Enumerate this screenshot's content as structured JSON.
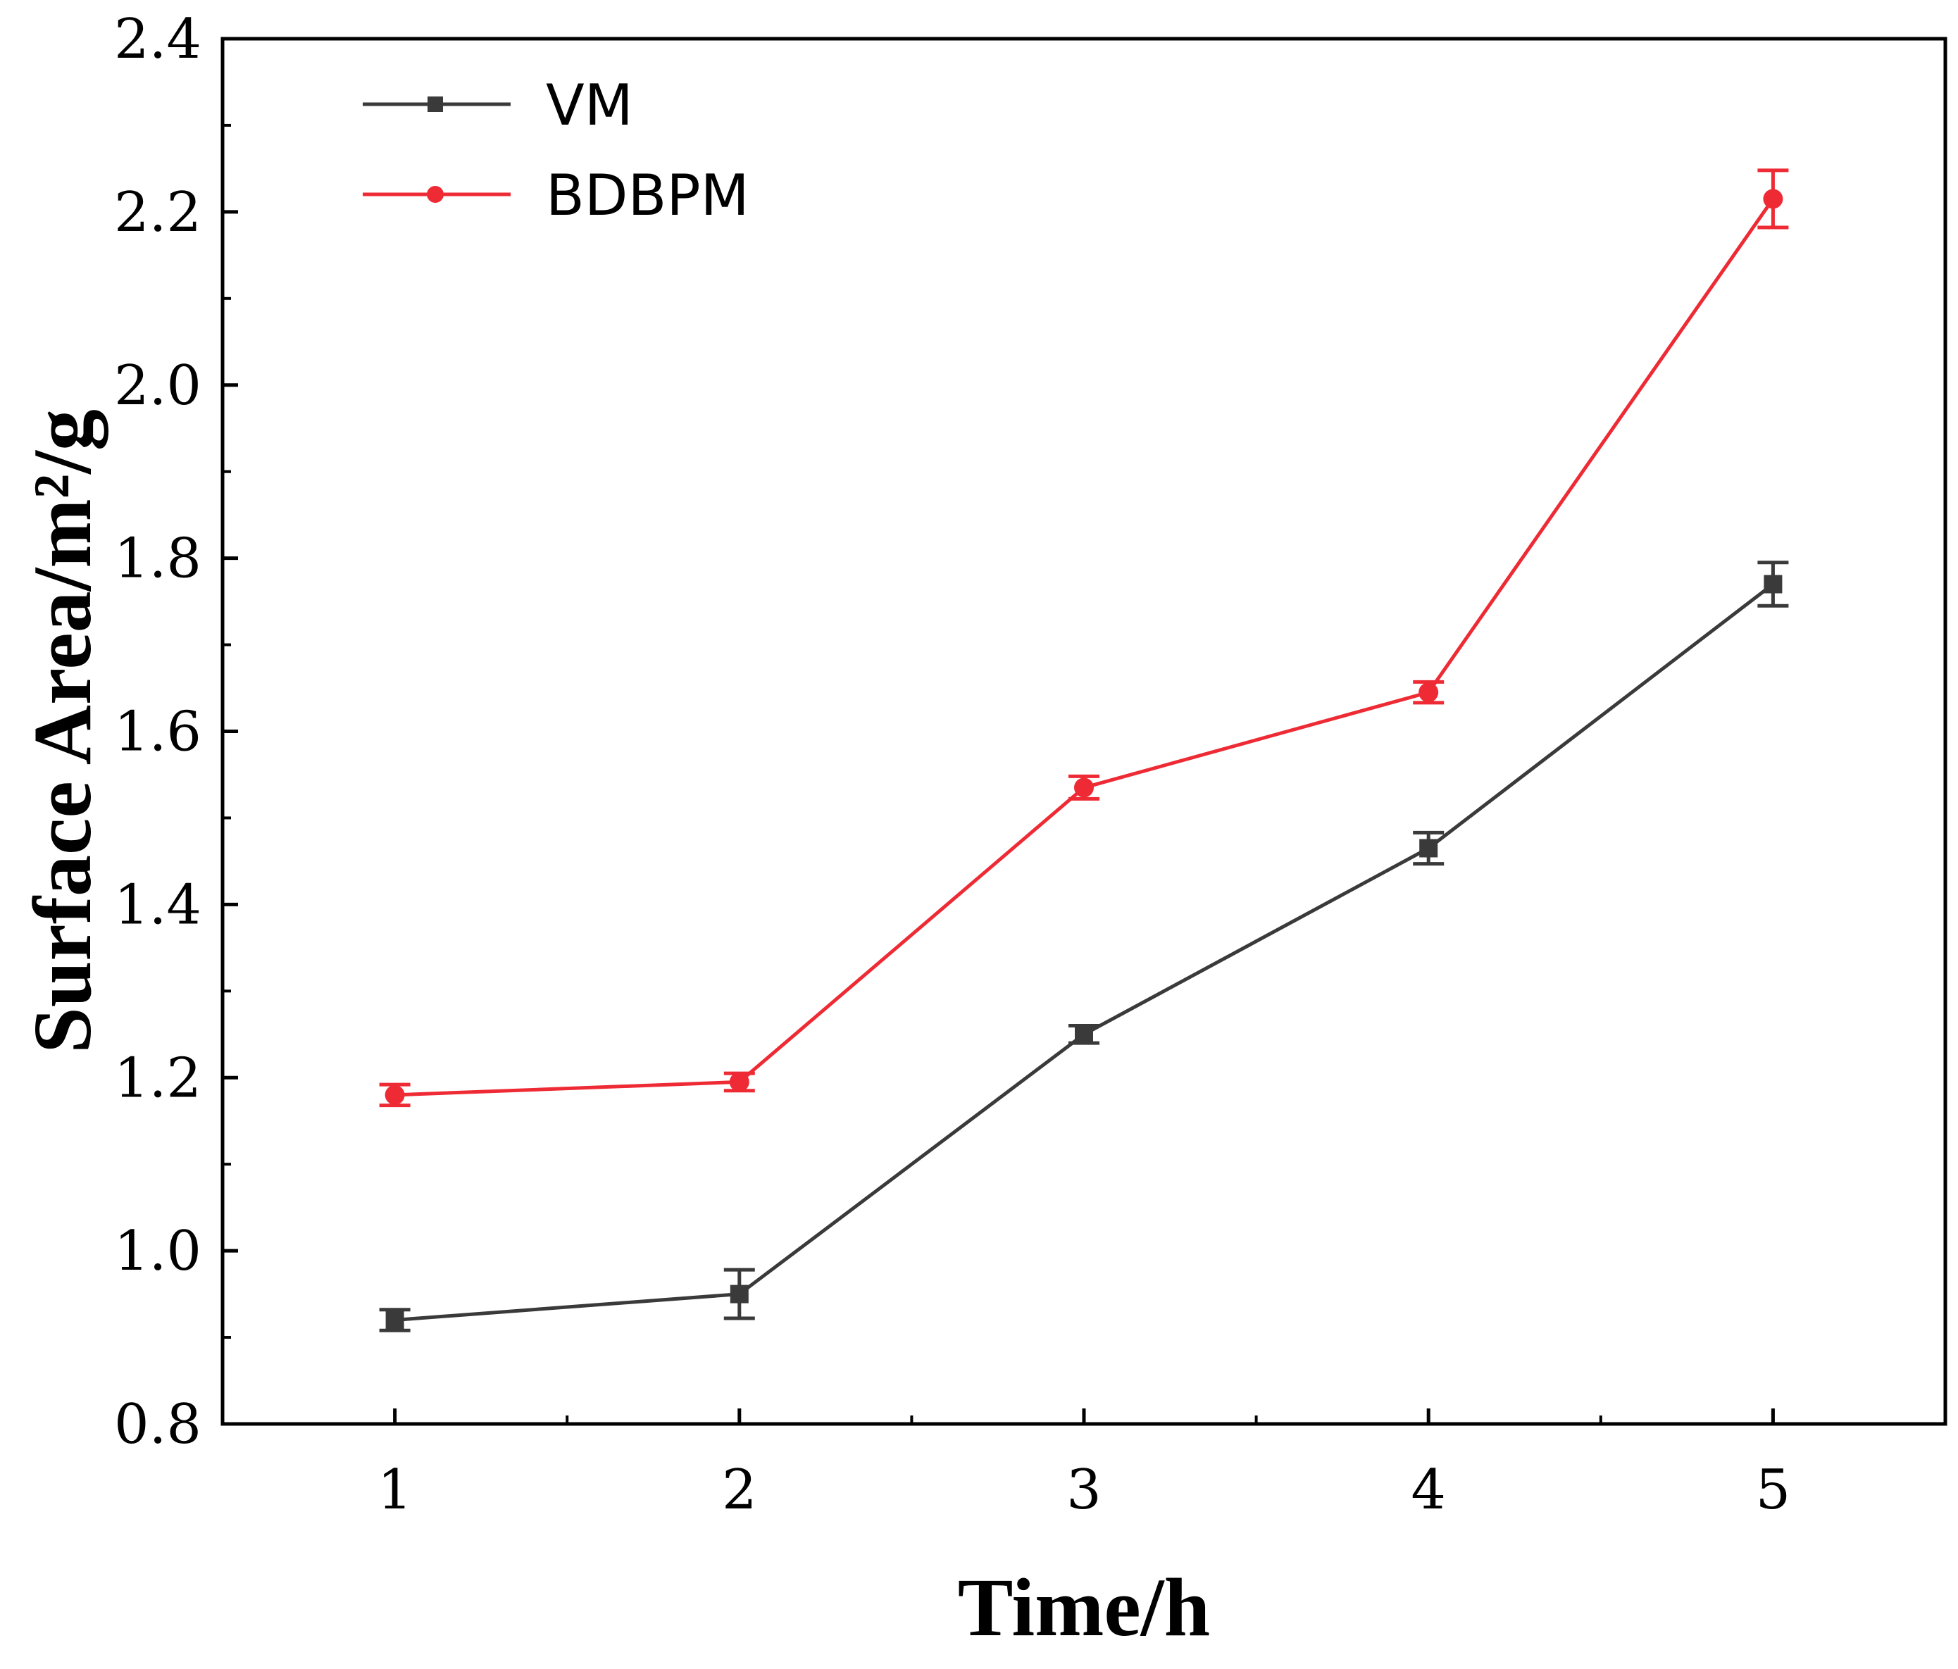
{
  "chart_data": {
    "type": "line",
    "xlabel": "Time/h",
    "ylabel": "Surface Area/m²/g",
    "x": [
      1,
      2,
      3,
      4,
      5
    ],
    "xticks": [
      "1",
      "2",
      "3",
      "4",
      "5"
    ],
    "xlim": [
      0.5,
      5.5
    ],
    "ylim": [
      0.8,
      2.4
    ],
    "yticks": [
      "0.8",
      "1.0",
      "1.2",
      "1.4",
      "1.6",
      "1.8",
      "2.0",
      "2.2",
      "2.4"
    ],
    "legend_position": "top-left",
    "grid": false,
    "series": [
      {
        "name": "VM",
        "color": "#3a3a3a",
        "marker": "square",
        "values": [
          0.92,
          0.95,
          1.25,
          1.465,
          1.77
        ],
        "errors": [
          0.012,
          0.028,
          0.01,
          0.018,
          0.025
        ]
      },
      {
        "name": "BDBPM",
        "color": "#ee2b35",
        "marker": "circle",
        "values": [
          1.18,
          1.195,
          1.535,
          1.645,
          2.215
        ],
        "errors": [
          0.012,
          0.01,
          0.013,
          0.012,
          0.033
        ]
      }
    ]
  }
}
